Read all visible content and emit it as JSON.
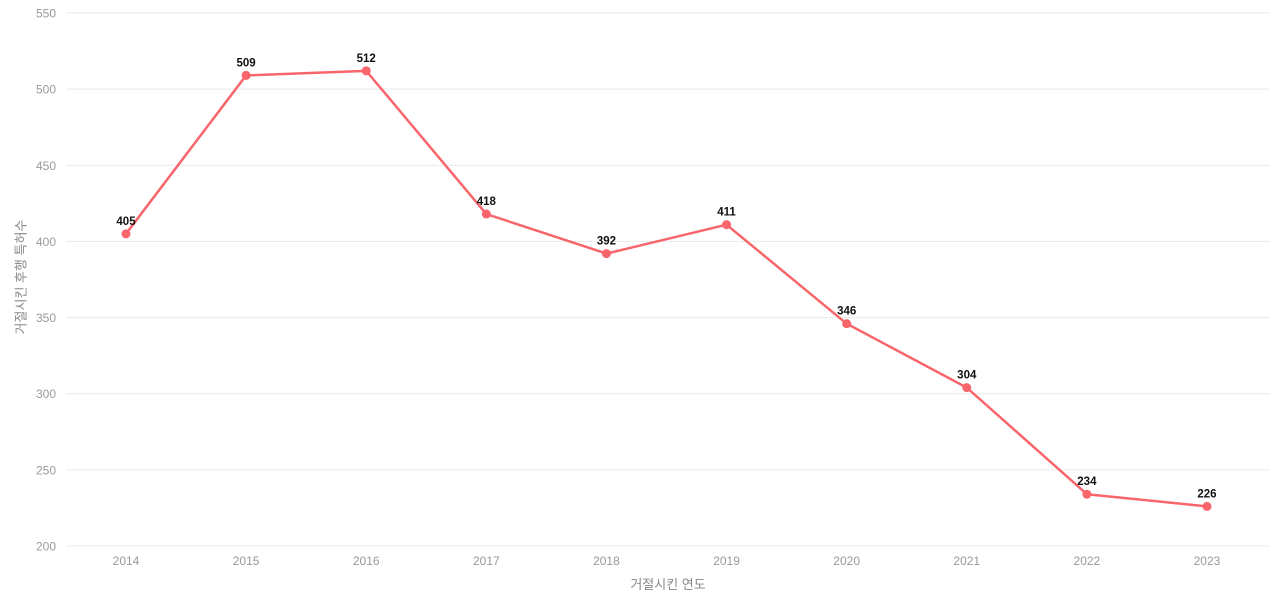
{
  "chart_data": {
    "type": "line",
    "title": "",
    "xlabel": "거절시킨 연도",
    "ylabel": "거절시킨 후행 특허수",
    "categories": [
      2014,
      2015,
      2016,
      2017,
      2018,
      2019,
      2020,
      2021,
      2022,
      2023
    ],
    "values": [
      405,
      509,
      512,
      418,
      392,
      411,
      346,
      304,
      234,
      226
    ],
    "ylim": [
      200,
      550
    ],
    "yticks": [
      200,
      250,
      300,
      350,
      400,
      450,
      500,
      550
    ],
    "grid": true,
    "legend": "none",
    "data_labels": true,
    "colors": {
      "line": "#f8666c",
      "marker": "#f8666c",
      "data_label": "#111111",
      "tick_label": "#999999",
      "axis_title": "#888888",
      "gridline": "#e9e9e9",
      "background": "#ffffff"
    }
  }
}
